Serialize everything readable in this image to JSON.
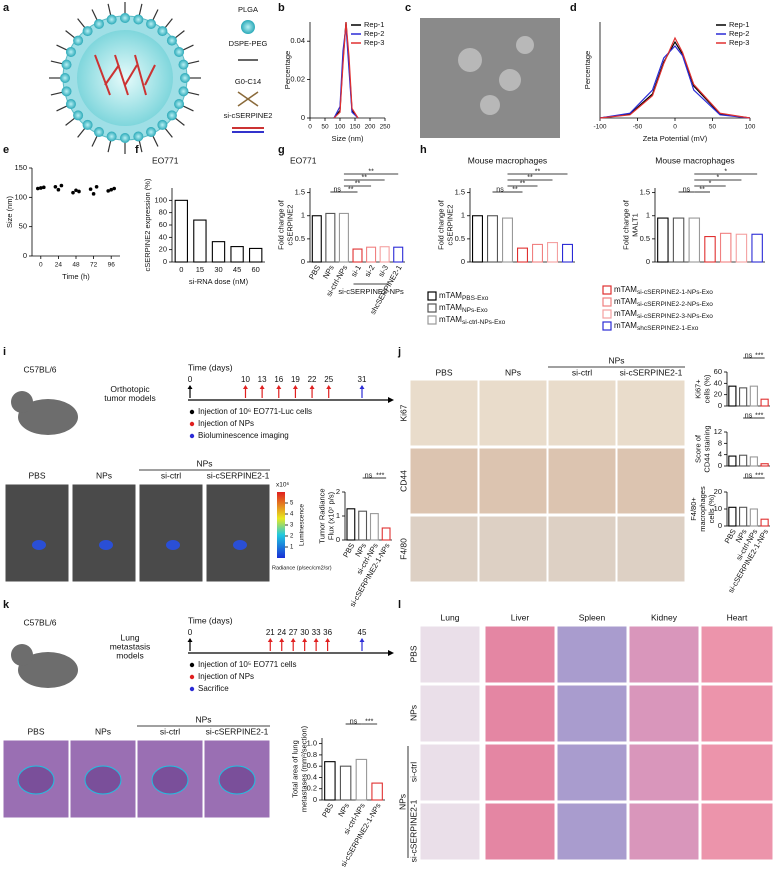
{
  "panels": {
    "a": {
      "label": "a",
      "legend": [
        "PLGA",
        "DSPE-PEG",
        "G0-C14",
        "si-cSERPINE2"
      ]
    },
    "b": {
      "label": "b",
      "type": "line",
      "xlabel": "Size (nm)",
      "ylabel": "Percentage",
      "legend": "upper right",
      "xlim": [
        0,
        250
      ],
      "xticks": [
        0,
        50,
        100,
        150,
        200,
        250
      ],
      "ylim": [
        0,
        0.05
      ],
      "yticks": [
        0,
        0.02,
        0.04
      ],
      "x": [
        80,
        100,
        110,
        120,
        130,
        140,
        160
      ],
      "series": [
        {
          "name": "Rep-1",
          "color": "#000000",
          "values": [
            0,
            0.004,
            0.03,
            0.05,
            0.028,
            0.004,
            0
          ]
        },
        {
          "name": "Rep-2",
          "color": "#2b2bd6",
          "values": [
            0,
            0.006,
            0.035,
            0.048,
            0.025,
            0.003,
            0
          ]
        },
        {
          "name": "Rep-3",
          "color": "#e03030",
          "values": [
            0,
            0.003,
            0.028,
            0.05,
            0.032,
            0.005,
            0
          ]
        }
      ]
    },
    "c": {
      "label": "c"
    },
    "d": {
      "label": "d",
      "type": "line",
      "xlabel": "Zeta Potential (mV)",
      "ylabel": "Percentage",
      "legend": "upper right",
      "xlim": [
        -100,
        100
      ],
      "xticks": [
        -100,
        -50,
        0,
        50,
        100
      ],
      "ylim": [
        0,
        0.012
      ],
      "x": [
        -100,
        -60,
        -30,
        -15,
        0,
        10,
        25,
        60,
        100
      ],
      "series": [
        {
          "name": "Rep-1",
          "color": "#000000",
          "values": [
            0,
            0.0005,
            0.003,
            0.007,
            0.0095,
            0.008,
            0.004,
            0.0005,
            0
          ]
        },
        {
          "name": "Rep-2",
          "color": "#2b2bd6",
          "values": [
            0,
            0.0006,
            0.0035,
            0.0075,
            0.009,
            0.0078,
            0.0035,
            0.0004,
            0
          ]
        },
        {
          "name": "Rep-3",
          "color": "#e03030",
          "values": [
            0,
            0.0004,
            0.0028,
            0.0068,
            0.01,
            0.0082,
            0.0042,
            0.0006,
            0
          ]
        }
      ]
    },
    "e": {
      "label": "e",
      "type": "scatter",
      "ylabel": "Size (nm)",
      "xlabel": "Time (h)",
      "color": "#000000",
      "xlim": [
        -12,
        108
      ],
      "xticks": [
        0,
        24,
        48,
        72,
        96
      ],
      "ylim": [
        0,
        150
      ],
      "yticks": [
        0,
        50,
        100,
        150
      ],
      "x": [
        0,
        0,
        0,
        24,
        24,
        24,
        48,
        48,
        48,
        72,
        72,
        72,
        96,
        96,
        96
      ],
      "values": [
        115,
        116,
        117,
        118,
        113,
        120,
        108,
        112,
        110,
        114,
        106,
        118,
        111,
        113,
        115
      ]
    },
    "f": {
      "label": "f",
      "type": "bar",
      "title": "EO771",
      "ylabel": "cSERPINE2 expression (%)",
      "xlabel": "si-RNA dose (nM)",
      "categories": [
        "0",
        "15",
        "30",
        "45",
        "60"
      ],
      "values": [
        100,
        68,
        33,
        25,
        22
      ],
      "color": "#000000",
      "ylim": [
        0,
        120
      ],
      "yticks": [
        0,
        20,
        40,
        60,
        80,
        100
      ]
    },
    "g": {
      "label": "g",
      "type": "bar",
      "title": "EO771",
      "ylabel": [
        "Fold change of",
        "cSERPINE2"
      ],
      "categories": [
        "PBS",
        "NPs",
        "si-ctrl-NPs",
        "si-1",
        "si-2",
        "si-3",
        "shcSERPINE2-1"
      ],
      "group": "si-cSERPINE2-NPs",
      "values": [
        1,
        1.05,
        1.05,
        0.28,
        0.32,
        0.33,
        0.32
      ],
      "colors": [
        "#000000",
        "#555555",
        "#999999",
        "#e03030",
        "#f08080",
        "#f4a0a0",
        "#2b2bd6"
      ],
      "ylim": [
        0,
        1.6
      ],
      "yticks": [
        0,
        0.5,
        1,
        1.5
      ],
      "annotations": [
        "**",
        "**",
        "**",
        "**",
        "ns"
      ]
    },
    "h": {
      "label": "h",
      "charts": [
        {
          "type": "bar",
          "title": "Mouse macrophages",
          "ylabel": [
            "Fold change of",
            "cSERPINE2"
          ],
          "values": [
            1,
            1,
            0.95,
            0.3,
            0.38,
            0.42,
            0.38
          ],
          "colors": [
            "#000000",
            "#555555",
            "#999999",
            "#e03030",
            "#f08080",
            "#f4a0a0",
            "#2b2bd6"
          ],
          "ylim": [
            0,
            1.6
          ],
          "yticks": [
            0,
            0.5,
            1,
            1.5
          ],
          "annotations": [
            "**",
            "**",
            "**",
            "**",
            "ns"
          ]
        },
        {
          "type": "bar",
          "title": "Mouse macrophages",
          "ylabel": [
            "Fold change of",
            "MALT1"
          ],
          "values": [
            0.95,
            0.95,
            0.95,
            0.55,
            0.62,
            0.6,
            0.6
          ],
          "colors": [
            "#000000",
            "#555555",
            "#999999",
            "#e03030",
            "#f08080",
            "#f4a0a0",
            "#2b2bd6"
          ],
          "ylim": [
            0,
            1.6
          ],
          "yticks": [
            0,
            0.5,
            1,
            1.5
          ],
          "annotations": [
            "*",
            "*",
            "*",
            "**",
            "ns"
          ]
        }
      ],
      "legend": [
        {
          "base": "mTAM",
          "sub": "PBS-Exo",
          "color": "#000000"
        },
        {
          "base": "mTAM",
          "sub": "NPs-Exo",
          "color": "#555555"
        },
        {
          "base": "mTAM",
          "sub": "si-ctrl-NPs-Exo",
          "color": "#999999"
        },
        {
          "base": "mTAM",
          "sub": "si-cSERPINE2-1-NPs-Exo",
          "color": "#e03030"
        },
        {
          "base": "mTAM",
          "sub": "si-cSERPINE2-2-NPs-Exo",
          "color": "#f08080"
        },
        {
          "base": "mTAM",
          "sub": "si-cSERPINE2-3-NPs-Exo",
          "color": "#f4a0a0"
        },
        {
          "base": "mTAM",
          "sub": "shcSERPINE2-1-Exo",
          "color": "#2b2bd6"
        }
      ]
    },
    "i": {
      "label": "i",
      "strain": "C57BL/6",
      "model": [
        "Orthotopic",
        "tumor models"
      ],
      "time_label": "Time (days)",
      "days": [
        0,
        10,
        13,
        16,
        19,
        22,
        25,
        31
      ],
      "day_colors": [
        "#000000",
        "#e02020",
        "#e02020",
        "#e02020",
        "#e02020",
        "#e02020",
        "#e02020",
        "#2b2bd6"
      ],
      "legend": [
        {
          "text": "Injection of 10⁶ EO771-Luc cells",
          "color": "#000000"
        },
        {
          "text": "Injection of NPs",
          "color": "#e02020"
        },
        {
          "text": "Bioluminescence imaging",
          "color": "#2b2bd6"
        }
      ],
      "group": "NPs",
      "columns": [
        "PBS",
        "NPs",
        "si-ctrl",
        "si-cSERPINE2-1"
      ],
      "colorbar": {
        "scale": "x10⁶",
        "lim": [
          0,
          6
        ],
        "ticks": [
          1,
          2,
          3,
          4,
          5
        ],
        "label": "Luminescence",
        "unit": "Radiance (p/sec/cm2/sr)"
      },
      "chart": {
        "type": "bar",
        "ylabel": [
          "Tumor Radiance",
          "Flux (x10⁷ p/s)"
        ],
        "categories": [
          "PBS",
          "NPs",
          "si-ctrl-NPs",
          "si-cSERPINE2-1-NPs"
        ],
        "values": [
          1.3,
          1.2,
          1.1,
          0.5
        ],
        "colors": [
          "#000000",
          "#555555",
          "#999999",
          "#e03030"
        ],
        "ylim": [
          0,
          2
        ],
        "yticks": [
          0,
          1,
          2
        ],
        "annotations": [
          "ns",
          "***"
        ]
      }
    },
    "j": {
      "label": "j",
      "group": "NPs",
      "columns": [
        "PBS",
        "NPs",
        "si-ctrl",
        "si-cSERPINE2-1"
      ],
      "rows": [
        "Ki67",
        "CD44",
        "F4/80"
      ],
      "charts": [
        {
          "type": "bar",
          "ylabel": [
            "Ki67+",
            "cells (%)"
          ],
          "values": [
            35,
            32,
            35,
            12
          ],
          "colors": [
            "#000000",
            "#555555",
            "#999999",
            "#e03030"
          ],
          "ylim": [
            0,
            60
          ],
          "yticks": [
            0,
            20,
            40,
            60
          ],
          "annotations": [
            "ns",
            "***"
          ]
        },
        {
          "type": "bar",
          "ylabel": [
            "Score of",
            "CD44 staining"
          ],
          "values": [
            3.5,
            3.8,
            3.2,
            0.8
          ],
          "colors": [
            "#000000",
            "#555555",
            "#999999",
            "#e03030"
          ],
          "ylim": [
            0,
            12
          ],
          "yticks": [
            0,
            4,
            8,
            12
          ],
          "annotations": [
            "ns",
            "***"
          ]
        },
        {
          "type": "bar",
          "ylabel": [
            "F4/80+",
            "macrophages",
            "cells (%)"
          ],
          "categories": [
            "PBS",
            "NPs",
            "si-ctrl-NPs",
            "si-cSERPINE2-1-NPs"
          ],
          "values": [
            11,
            11,
            10,
            4
          ],
          "colors": [
            "#000000",
            "#555555",
            "#999999",
            "#e03030"
          ],
          "ylim": [
            0,
            20
          ],
          "yticks": [
            0,
            10,
            20
          ],
          "annotations": [
            "ns",
            "***"
          ]
        }
      ]
    },
    "k": {
      "label": "k",
      "strain": "C57BL/6",
      "model": [
        "Lung",
        "metastasis",
        "models"
      ],
      "time_label": "Time (days)",
      "days": [
        0,
        21,
        24,
        27,
        30,
        33,
        36,
        45
      ],
      "day_colors": [
        "#000000",
        "#e02020",
        "#e02020",
        "#e02020",
        "#e02020",
        "#e02020",
        "#e02020",
        "#2b2bd6"
      ],
      "legend": [
        {
          "text": "Injection of 10⁵ EO771 cells",
          "color": "#000000"
        },
        {
          "text": "Injection of NPs",
          "color": "#e02020"
        },
        {
          "text": "Sacrifice",
          "color": "#2b2bd6"
        }
      ],
      "group": "NPs",
      "columns": [
        "PBS",
        "NPs",
        "si-ctrl",
        "si-cSERPINE2-1"
      ],
      "chart": {
        "type": "bar",
        "ylabel": [
          "Total area of lung",
          "metastases (mm²/section)"
        ],
        "categories": [
          "PBS",
          "NPs",
          "si-ctrl-NPs",
          "si-cSERPINE2-1-NPs"
        ],
        "values": [
          0.68,
          0.6,
          0.72,
          0.3
        ],
        "colors": [
          "#000000",
          "#555555",
          "#999999",
          "#e03030"
        ],
        "ylim": [
          0,
          1.1
        ],
        "yticks": [
          0,
          0.2,
          0.4,
          0.6,
          0.8,
          {
            "value": 1,
            "label": "1.0"
          }
        ],
        "annotations": [
          "ns",
          "***"
        ]
      }
    },
    "l": {
      "label": "l",
      "columns": [
        "Lung",
        "Liver",
        "Spleen",
        "Kidney",
        "Heart"
      ],
      "rows": [
        "PBS",
        "NPs",
        "si-ctrl",
        "si-cSERPINE2-1"
      ],
      "group": "NPs"
    }
  }
}
